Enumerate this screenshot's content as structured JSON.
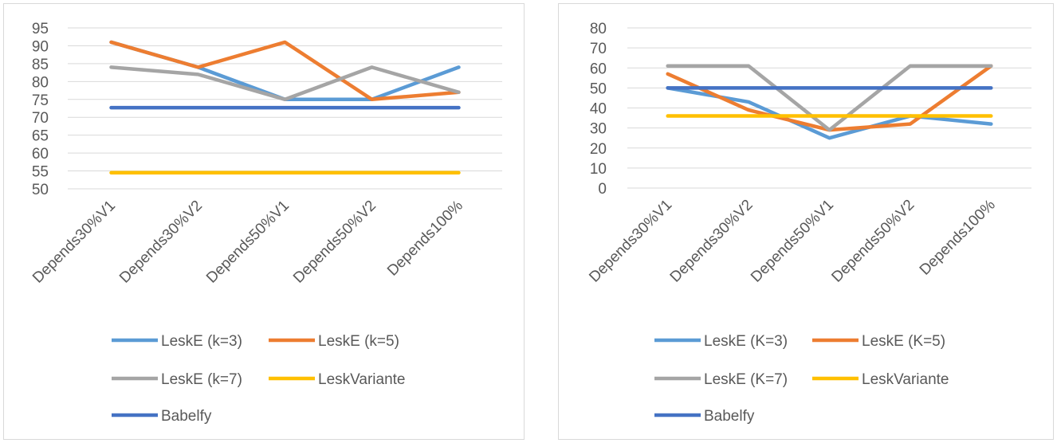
{
  "chart_data": [
    {
      "type": "line",
      "title": "",
      "categories": [
        "Depends30%V1",
        "Depends30%V2",
        "Depends50%V1",
        "Depends50%V2",
        "Depends100%"
      ],
      "ylim": [
        50,
        95
      ],
      "yticks": [
        50,
        55,
        60,
        65,
        70,
        75,
        80,
        85,
        90,
        95
      ],
      "grid": true,
      "legend_position": "bottom",
      "series": [
        {
          "name": "LeskE (k=3)",
          "color": "#5b9bd5",
          "values": [
            91,
            84,
            75,
            75,
            84
          ]
        },
        {
          "name": "LeskE (k=5)",
          "color": "#ed7d31",
          "values": [
            91,
            84,
            91,
            75,
            77
          ]
        },
        {
          "name": "LeskE (k=7)",
          "color": "#a5a5a5",
          "values": [
            84,
            82,
            75,
            84,
            77
          ]
        },
        {
          "name": "LeskVariante",
          "color": "#ffc000",
          "values": [
            54.5,
            54.5,
            54.5,
            54.5,
            54.5
          ]
        },
        {
          "name": "Babelfy",
          "color": "#4472c4",
          "values": [
            72.7,
            72.7,
            72.7,
            72.7,
            72.7
          ]
        }
      ]
    },
    {
      "type": "line",
      "title": "",
      "categories": [
        "Depends30%V1",
        "Depends30%V2",
        "Depends50%V1",
        "Depends50%V2",
        "Depends100%"
      ],
      "ylim": [
        0,
        80
      ],
      "yticks": [
        0,
        10,
        20,
        30,
        40,
        50,
        60,
        70,
        80
      ],
      "grid": true,
      "legend_position": "bottom",
      "series": [
        {
          "name": "LeskE (K=3)",
          "color": "#5b9bd5",
          "values": [
            50,
            43,
            25,
            36,
            32
          ]
        },
        {
          "name": "LeskE (K=5)",
          "color": "#ed7d31",
          "values": [
            57,
            39,
            29,
            32,
            61
          ]
        },
        {
          "name": "LeskE (K=7)",
          "color": "#a5a5a5",
          "values": [
            61,
            61,
            29,
            61,
            61
          ]
        },
        {
          "name": "LeskVariante",
          "color": "#ffc000",
          "values": [
            36,
            36,
            36,
            36,
            36
          ]
        },
        {
          "name": "Babelfy",
          "color": "#4472c4",
          "values": [
            50,
            50,
            50,
            50,
            50
          ]
        }
      ]
    }
  ]
}
